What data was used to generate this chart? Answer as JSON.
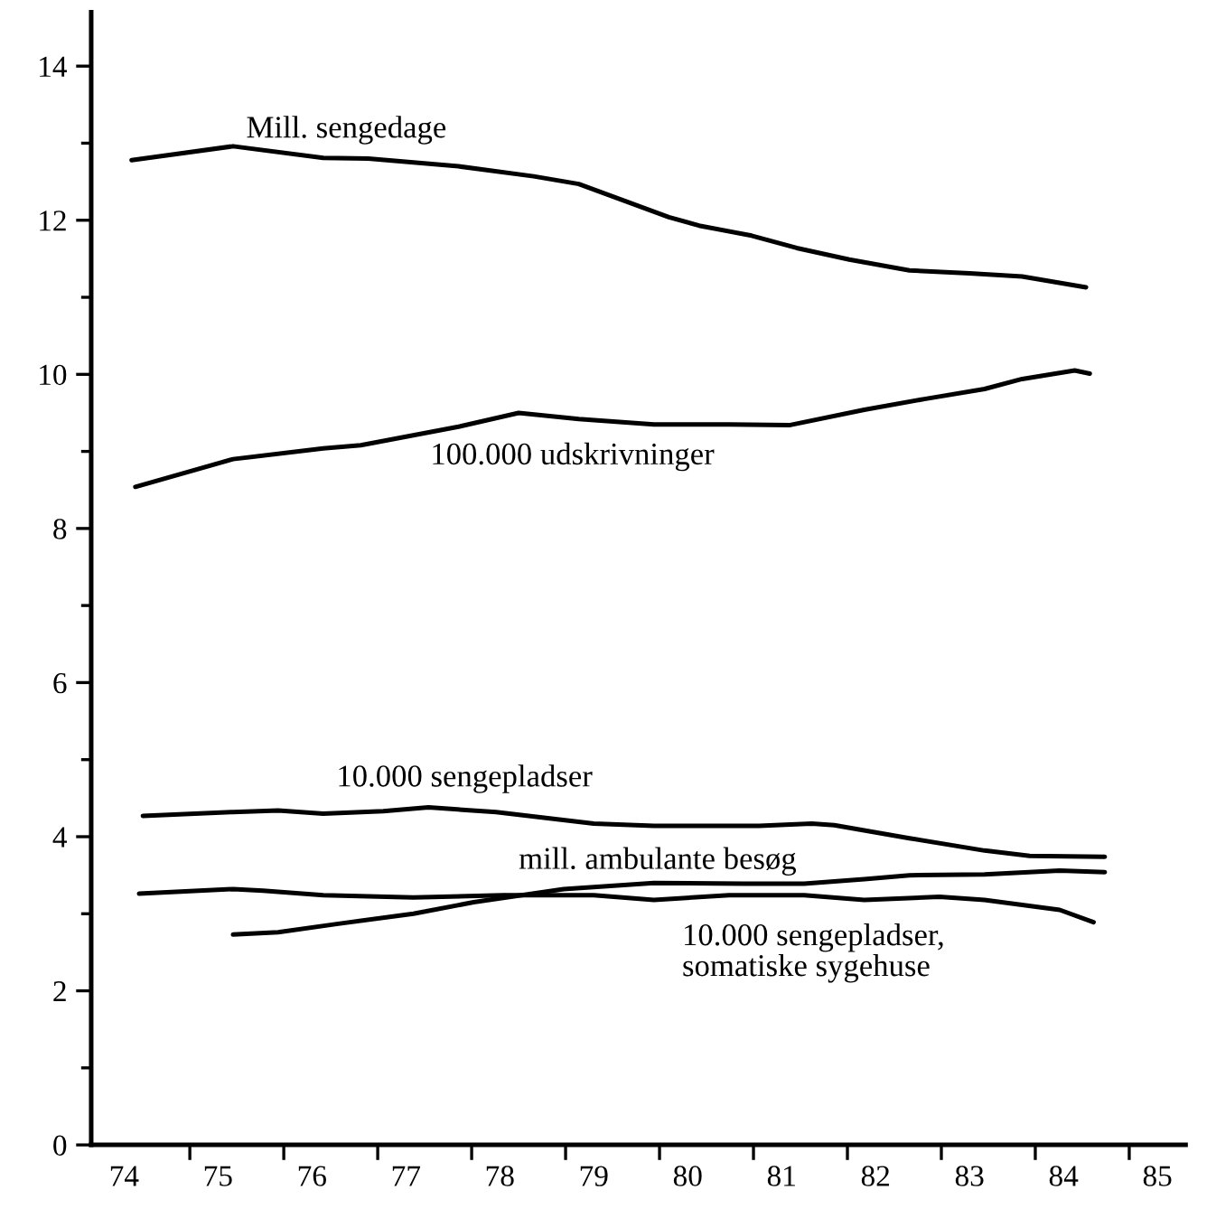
{
  "chart_data": {
    "type": "line",
    "xlim": [
      73.65,
      85.3
    ],
    "xticks": [
      {
        "value": 74,
        "label": "74"
      },
      {
        "value": 75,
        "label": "75"
      },
      {
        "value": 76,
        "label": "76"
      },
      {
        "value": 77,
        "label": "77"
      },
      {
        "value": 78,
        "label": "78"
      },
      {
        "value": 79,
        "label": "79"
      },
      {
        "value": 80,
        "label": "80"
      },
      {
        "value": 81,
        "label": "81"
      },
      {
        "value": 82,
        "label": "82"
      },
      {
        "value": 83,
        "label": "83"
      },
      {
        "value": 84,
        "label": "84"
      },
      {
        "value": 85,
        "label": "85"
      },
      {
        "value": 74.7,
        "label": null
      },
      {
        "value": 75.7,
        "label": null
      },
      {
        "value": 76.7,
        "label": null
      },
      {
        "value": 77.7,
        "label": null
      },
      {
        "value": 78.7,
        "label": null
      },
      {
        "value": 79.7,
        "label": null
      },
      {
        "value": 80.7,
        "label": null
      },
      {
        "value": 81.7,
        "label": null
      },
      {
        "value": 82.7,
        "label": null
      },
      {
        "value": 83.7,
        "label": null
      },
      {
        "value": 84.7,
        "label": null
      }
    ],
    "ylim": [
      0,
      14.7
    ],
    "yticks": [
      0,
      {
        "value": 1,
        "label": null
      },
      2,
      {
        "value": 3,
        "label": null
      },
      4,
      {
        "value": 5,
        "label": null
      },
      6,
      {
        "value": 7,
        "label": null
      },
      8,
      {
        "value": 9,
        "label": null
      },
      10,
      {
        "value": 11,
        "label": null
      },
      12,
      {
        "value": 13,
        "label": null
      },
      14
    ],
    "grid": false,
    "marker": "none",
    "line_style": "solid",
    "series": [
      {
        "name": "Mill. sengedage",
        "color": "#000000",
        "x": [
          74.08,
          75.16,
          76.12,
          76.6,
          77.56,
          78.36,
          78.84,
          79.8,
          80.12,
          80.68,
          81.16,
          81.72,
          82.36,
          83.0,
          83.56,
          84.24
        ],
        "values": [
          12.78,
          12.96,
          12.81,
          12.8,
          12.7,
          12.57,
          12.47,
          12.04,
          11.93,
          11.8,
          11.64,
          11.49,
          11.35,
          11.31,
          11.27,
          11.13
        ]
      },
      {
        "name": "100.000 udskrivninger",
        "color": "#000000",
        "x": [
          74.12,
          75.16,
          76.12,
          76.52,
          77.56,
          78.2,
          78.84,
          79.64,
          80.44,
          81.08,
          81.88,
          82.52,
          83.16,
          83.56,
          84.12,
          84.28
        ],
        "values": [
          8.54,
          8.9,
          9.04,
          9.08,
          9.32,
          9.5,
          9.42,
          9.35,
          9.35,
          9.34,
          9.54,
          9.68,
          9.81,
          9.94,
          10.05,
          10.01
        ]
      },
      {
        "name": "10.000 sengepladser",
        "color": "#000000",
        "x": [
          74.2,
          75.16,
          75.64,
          76.12,
          76.76,
          77.24,
          77.96,
          79.0,
          79.64,
          80.76,
          81.32,
          81.56,
          82.36,
          83.16,
          83.64,
          84.44
        ],
        "values": [
          4.27,
          4.32,
          4.34,
          4.3,
          4.33,
          4.38,
          4.32,
          4.17,
          4.14,
          4.14,
          4.17,
          4.15,
          3.98,
          3.82,
          3.75,
          3.74
        ]
      },
      {
        "name": "mill. ambulante besøg",
        "color": "#000000",
        "x": [
          75.16,
          75.64,
          76.28,
          77.08,
          77.72,
          78.68,
          79.64,
          80.6,
          81.24,
          81.88,
          82.36,
          83.16,
          83.96,
          84.44
        ],
        "values": [
          2.73,
          2.76,
          2.87,
          3.0,
          3.15,
          3.32,
          3.4,
          3.39,
          3.39,
          3.45,
          3.5,
          3.51,
          3.56,
          3.54
        ]
      },
      {
        "name": "10.000 sengepladser,\nsomatiske sygehuse",
        "color": "#000000",
        "x": [
          74.16,
          75.16,
          75.48,
          76.12,
          77.08,
          78.04,
          79.0,
          79.64,
          80.44,
          81.24,
          81.88,
          82.68,
          83.16,
          83.96,
          84.32
        ],
        "values": [
          3.26,
          3.32,
          3.3,
          3.24,
          3.21,
          3.24,
          3.24,
          3.18,
          3.24,
          3.24,
          3.18,
          3.22,
          3.18,
          3.05,
          2.89
        ]
      }
    ]
  }
}
